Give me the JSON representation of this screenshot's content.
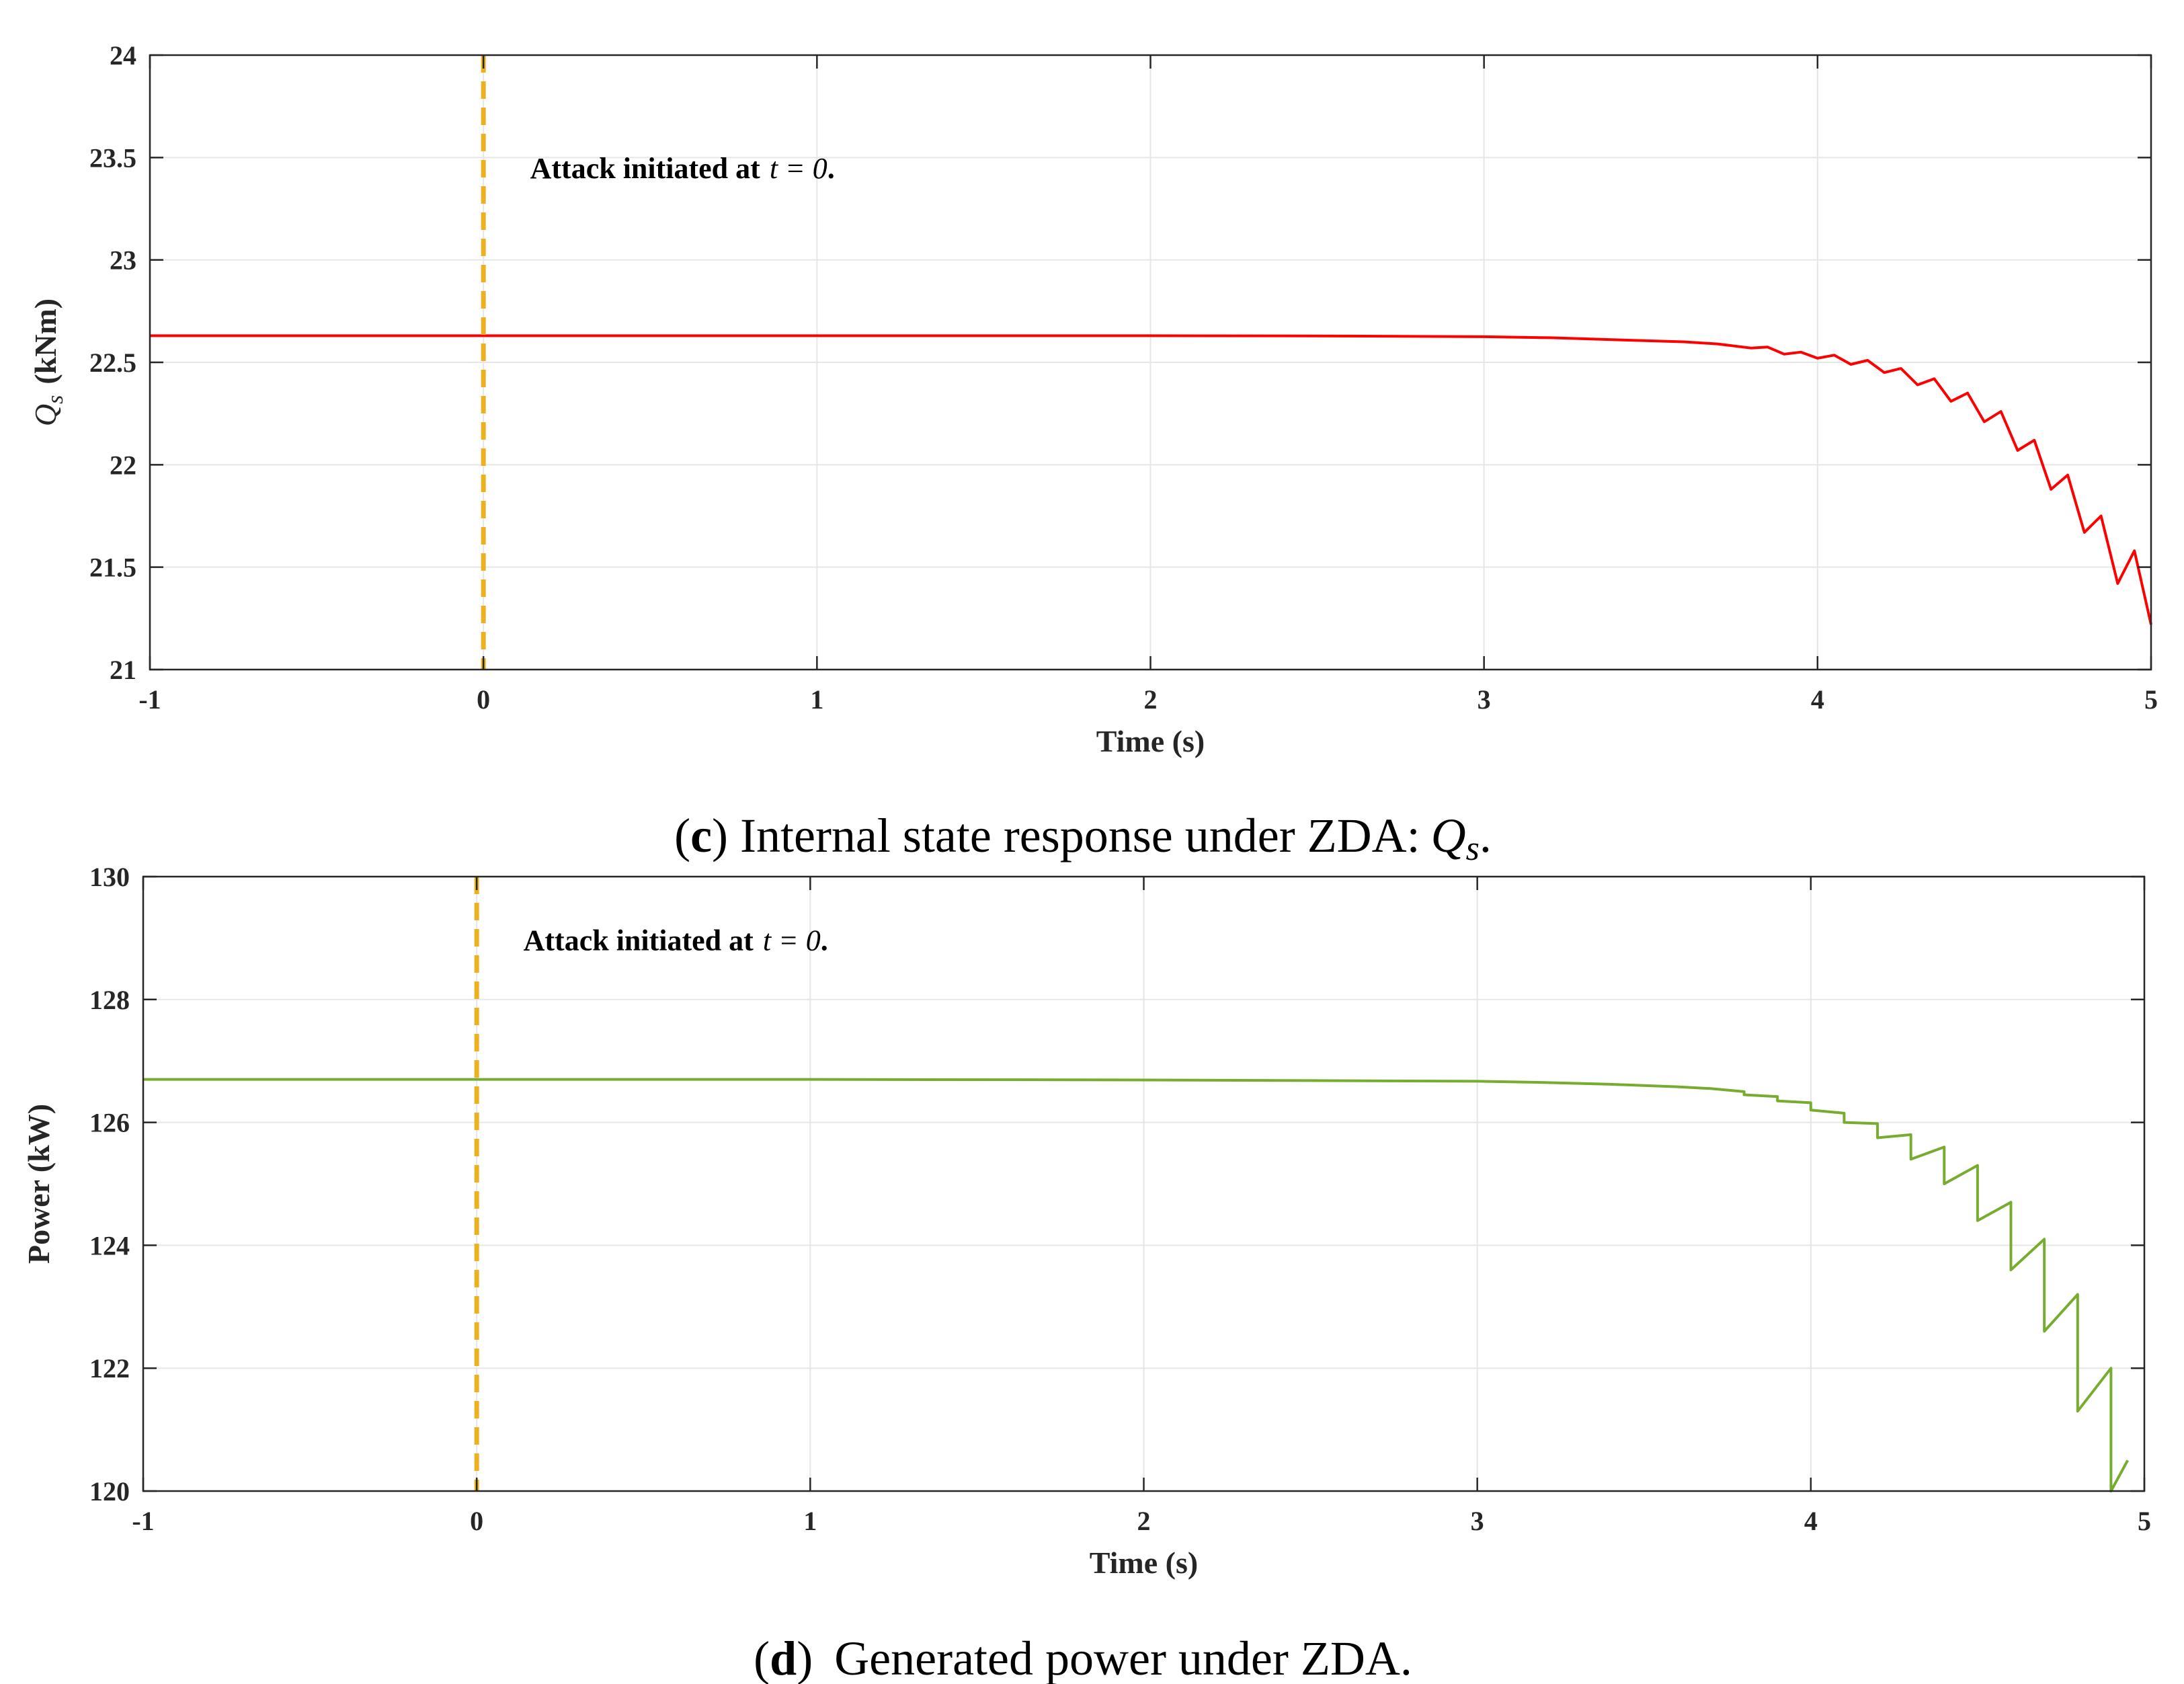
{
  "chart_data": [
    {
      "type": "line",
      "panel": "c",
      "caption": {
        "letter": "c",
        "text": "Internal state response under ZDA:",
        "math_symbol": "Q",
        "math_subscript": "s",
        "suffix": "."
      },
      "xlabel": "Time (s)",
      "ylabel": "Q",
      "ylabel_subscript": "s",
      "ylabel_units": "(kNm)",
      "xlim": [
        -1,
        5
      ],
      "ylim": [
        21,
        24
      ],
      "xticks": [
        -1,
        0,
        1,
        2,
        3,
        4,
        5
      ],
      "yticks": [
        21,
        21.5,
        22,
        22.5,
        23,
        23.5,
        24
      ],
      "xtick_labels": [
        "-1",
        "0",
        "1",
        "2",
        "3",
        "4",
        "5"
      ],
      "ytick_labels": [
        "21",
        "21.5",
        "22",
        "22.5",
        "23",
        "23.5",
        "24"
      ],
      "grid": true,
      "annotation": {
        "text": "Attack initiated at",
        "math": "t = 0",
        "suffix": ".",
        "x": 0.14,
        "y": 23.4
      },
      "attack_line": {
        "x": 0,
        "color": "#EDB120"
      },
      "series": [
        {
          "name": "Qs",
          "color": "#FF0000",
          "x": [
            -1,
            0,
            1,
            2,
            2.5,
            3,
            3.2,
            3.4,
            3.6,
            3.7,
            3.8,
            3.85,
            3.9,
            3.95,
            4.0,
            4.05,
            4.1,
            4.15,
            4.2,
            4.25,
            4.3,
            4.35,
            4.4,
            4.45,
            4.5,
            4.55,
            4.6,
            4.65,
            4.7,
            4.75,
            4.8,
            4.85,
            4.9,
            4.95,
            5.0
          ],
          "values": [
            22.63,
            22.63,
            22.63,
            22.63,
            22.629,
            22.625,
            22.62,
            22.61,
            22.6,
            22.59,
            22.57,
            22.575,
            22.54,
            22.55,
            22.52,
            22.535,
            22.49,
            22.51,
            22.45,
            22.47,
            22.39,
            22.42,
            22.31,
            22.35,
            22.21,
            22.26,
            22.07,
            22.12,
            21.88,
            21.95,
            21.67,
            21.75,
            21.42,
            21.58,
            21.22
          ]
        }
      ]
    },
    {
      "type": "line",
      "panel": "d",
      "caption": {
        "letter": "d",
        "text": "Generated power under ZDA."
      },
      "xlabel": "Time (s)",
      "ylabel": "Power (kW)",
      "xlim": [
        -1,
        5
      ],
      "ylim": [
        120,
        130
      ],
      "xticks": [
        -1,
        0,
        1,
        2,
        3,
        4,
        5
      ],
      "yticks": [
        120,
        122,
        124,
        126,
        128,
        130
      ],
      "xtick_labels": [
        "-1",
        "0",
        "1",
        "2",
        "3",
        "4",
        "5"
      ],
      "ytick_labels": [
        "120",
        "122",
        "124",
        "126",
        "128",
        "130"
      ],
      "grid": true,
      "annotation": {
        "text": "Attack initiated at",
        "math": "t = 0",
        "suffix": ".",
        "x": 0.14,
        "y": 128.8
      },
      "attack_line": {
        "x": 0,
        "color": "#EDB120"
      },
      "series": [
        {
          "name": "Power",
          "color": "#77AC30",
          "x": [
            -1,
            0,
            1,
            2,
            2.5,
            3,
            3.2,
            3.4,
            3.6,
            3.7,
            3.8,
            3.8,
            3.9,
            3.9,
            4.0,
            4.0,
            4.1,
            4.1,
            4.2,
            4.2,
            4.3,
            4.3,
            4.4,
            4.4,
            4.5,
            4.5,
            4.6,
            4.6,
            4.7,
            4.7,
            4.8,
            4.8,
            4.9,
            4.9,
            4.95
          ],
          "values": [
            126.7,
            126.7,
            126.7,
            126.69,
            126.68,
            126.67,
            126.65,
            126.62,
            126.58,
            126.55,
            126.5,
            126.45,
            126.42,
            126.35,
            126.32,
            126.2,
            126.15,
            126.0,
            125.98,
            125.75,
            125.8,
            125.4,
            125.6,
            125.0,
            125.3,
            124.4,
            124.7,
            123.6,
            124.1,
            122.6,
            123.2,
            121.3,
            122.0,
            119.6,
            120.5
          ]
        }
      ]
    }
  ]
}
